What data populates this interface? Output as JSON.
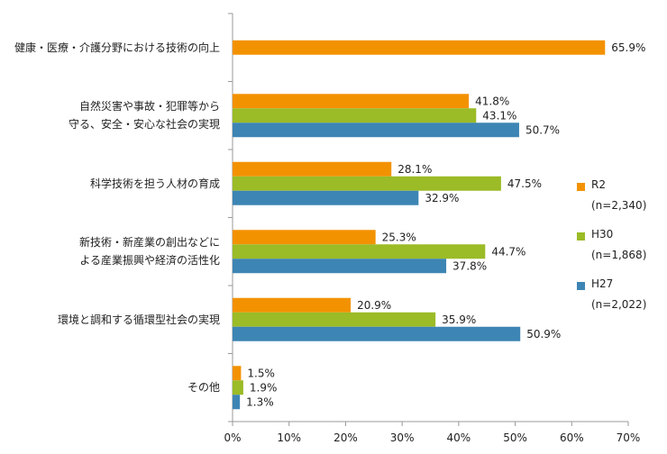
{
  "chart_data": {
    "type": "bar",
    "orientation": "horizontal",
    "categories": [
      [
        "健康・医療・介護分野における技術の向上"
      ],
      [
        "自然災害や事故・犯罪等から",
        "守る、安全・安心な社会の実現"
      ],
      [
        "科学技術を担う人材の育成"
      ],
      [
        "新技術・新産業の創出などに",
        "よる産業振興や経済の活性化"
      ],
      [
        "環境と調和する循環型社会の実現"
      ],
      [
        "その他"
      ]
    ],
    "series": [
      {
        "name": "R2",
        "n": "(n=2,340)",
        "color": "#F39200",
        "values": [
          65.9,
          41.8,
          28.1,
          25.3,
          20.9,
          1.5
        ]
      },
      {
        "name": "H30",
        "n": "(n=1,868)",
        "color": "#9BBB27",
        "values": [
          null,
          43.1,
          47.5,
          44.7,
          35.9,
          1.9
        ]
      },
      {
        "name": "H27",
        "n": "(n=2,022)",
        "color": "#3D85B4",
        "values": [
          null,
          50.7,
          32.9,
          37.8,
          50.9,
          1.3
        ]
      }
    ],
    "xlim": [
      0,
      70
    ],
    "xticks": [
      "0%",
      "10%",
      "20%",
      "30%",
      "40%",
      "50%",
      "60%",
      "70%"
    ],
    "value_suffix": "%",
    "legend_position": "right",
    "grid": false
  }
}
